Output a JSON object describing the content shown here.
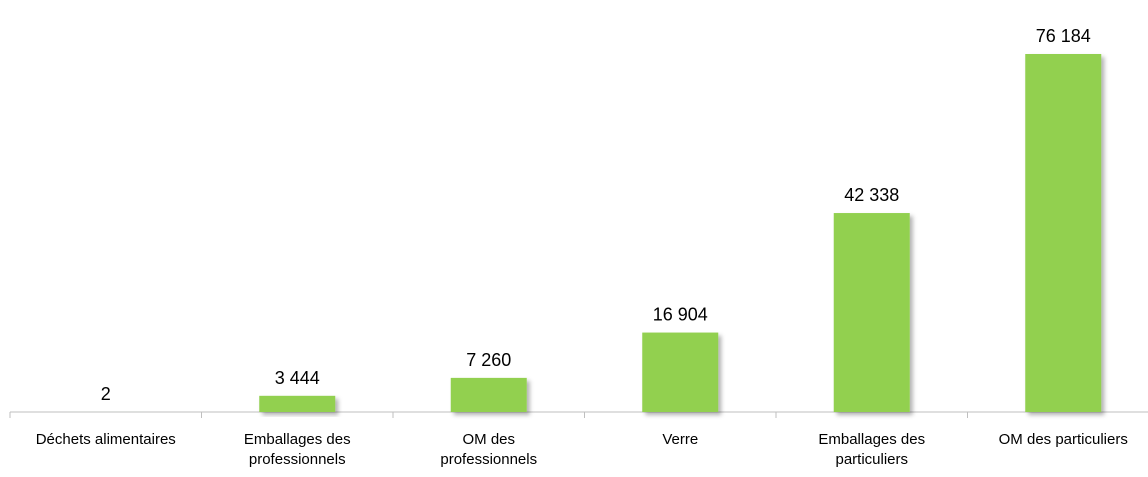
{
  "chart_data": {
    "type": "bar",
    "categories": [
      "Déchets alimentaires",
      "Emballages des professionnels",
      "OM des professionnels",
      "Verre",
      "Emballages des particuliers",
      "OM des particuliers"
    ],
    "values": [
      2,
      3444,
      7260,
      16904,
      42338,
      76184
    ],
    "value_labels": [
      "2",
      "3 444",
      "7 260",
      "16 904",
      "42 338",
      "76 184"
    ],
    "color": "#92d050"
  }
}
